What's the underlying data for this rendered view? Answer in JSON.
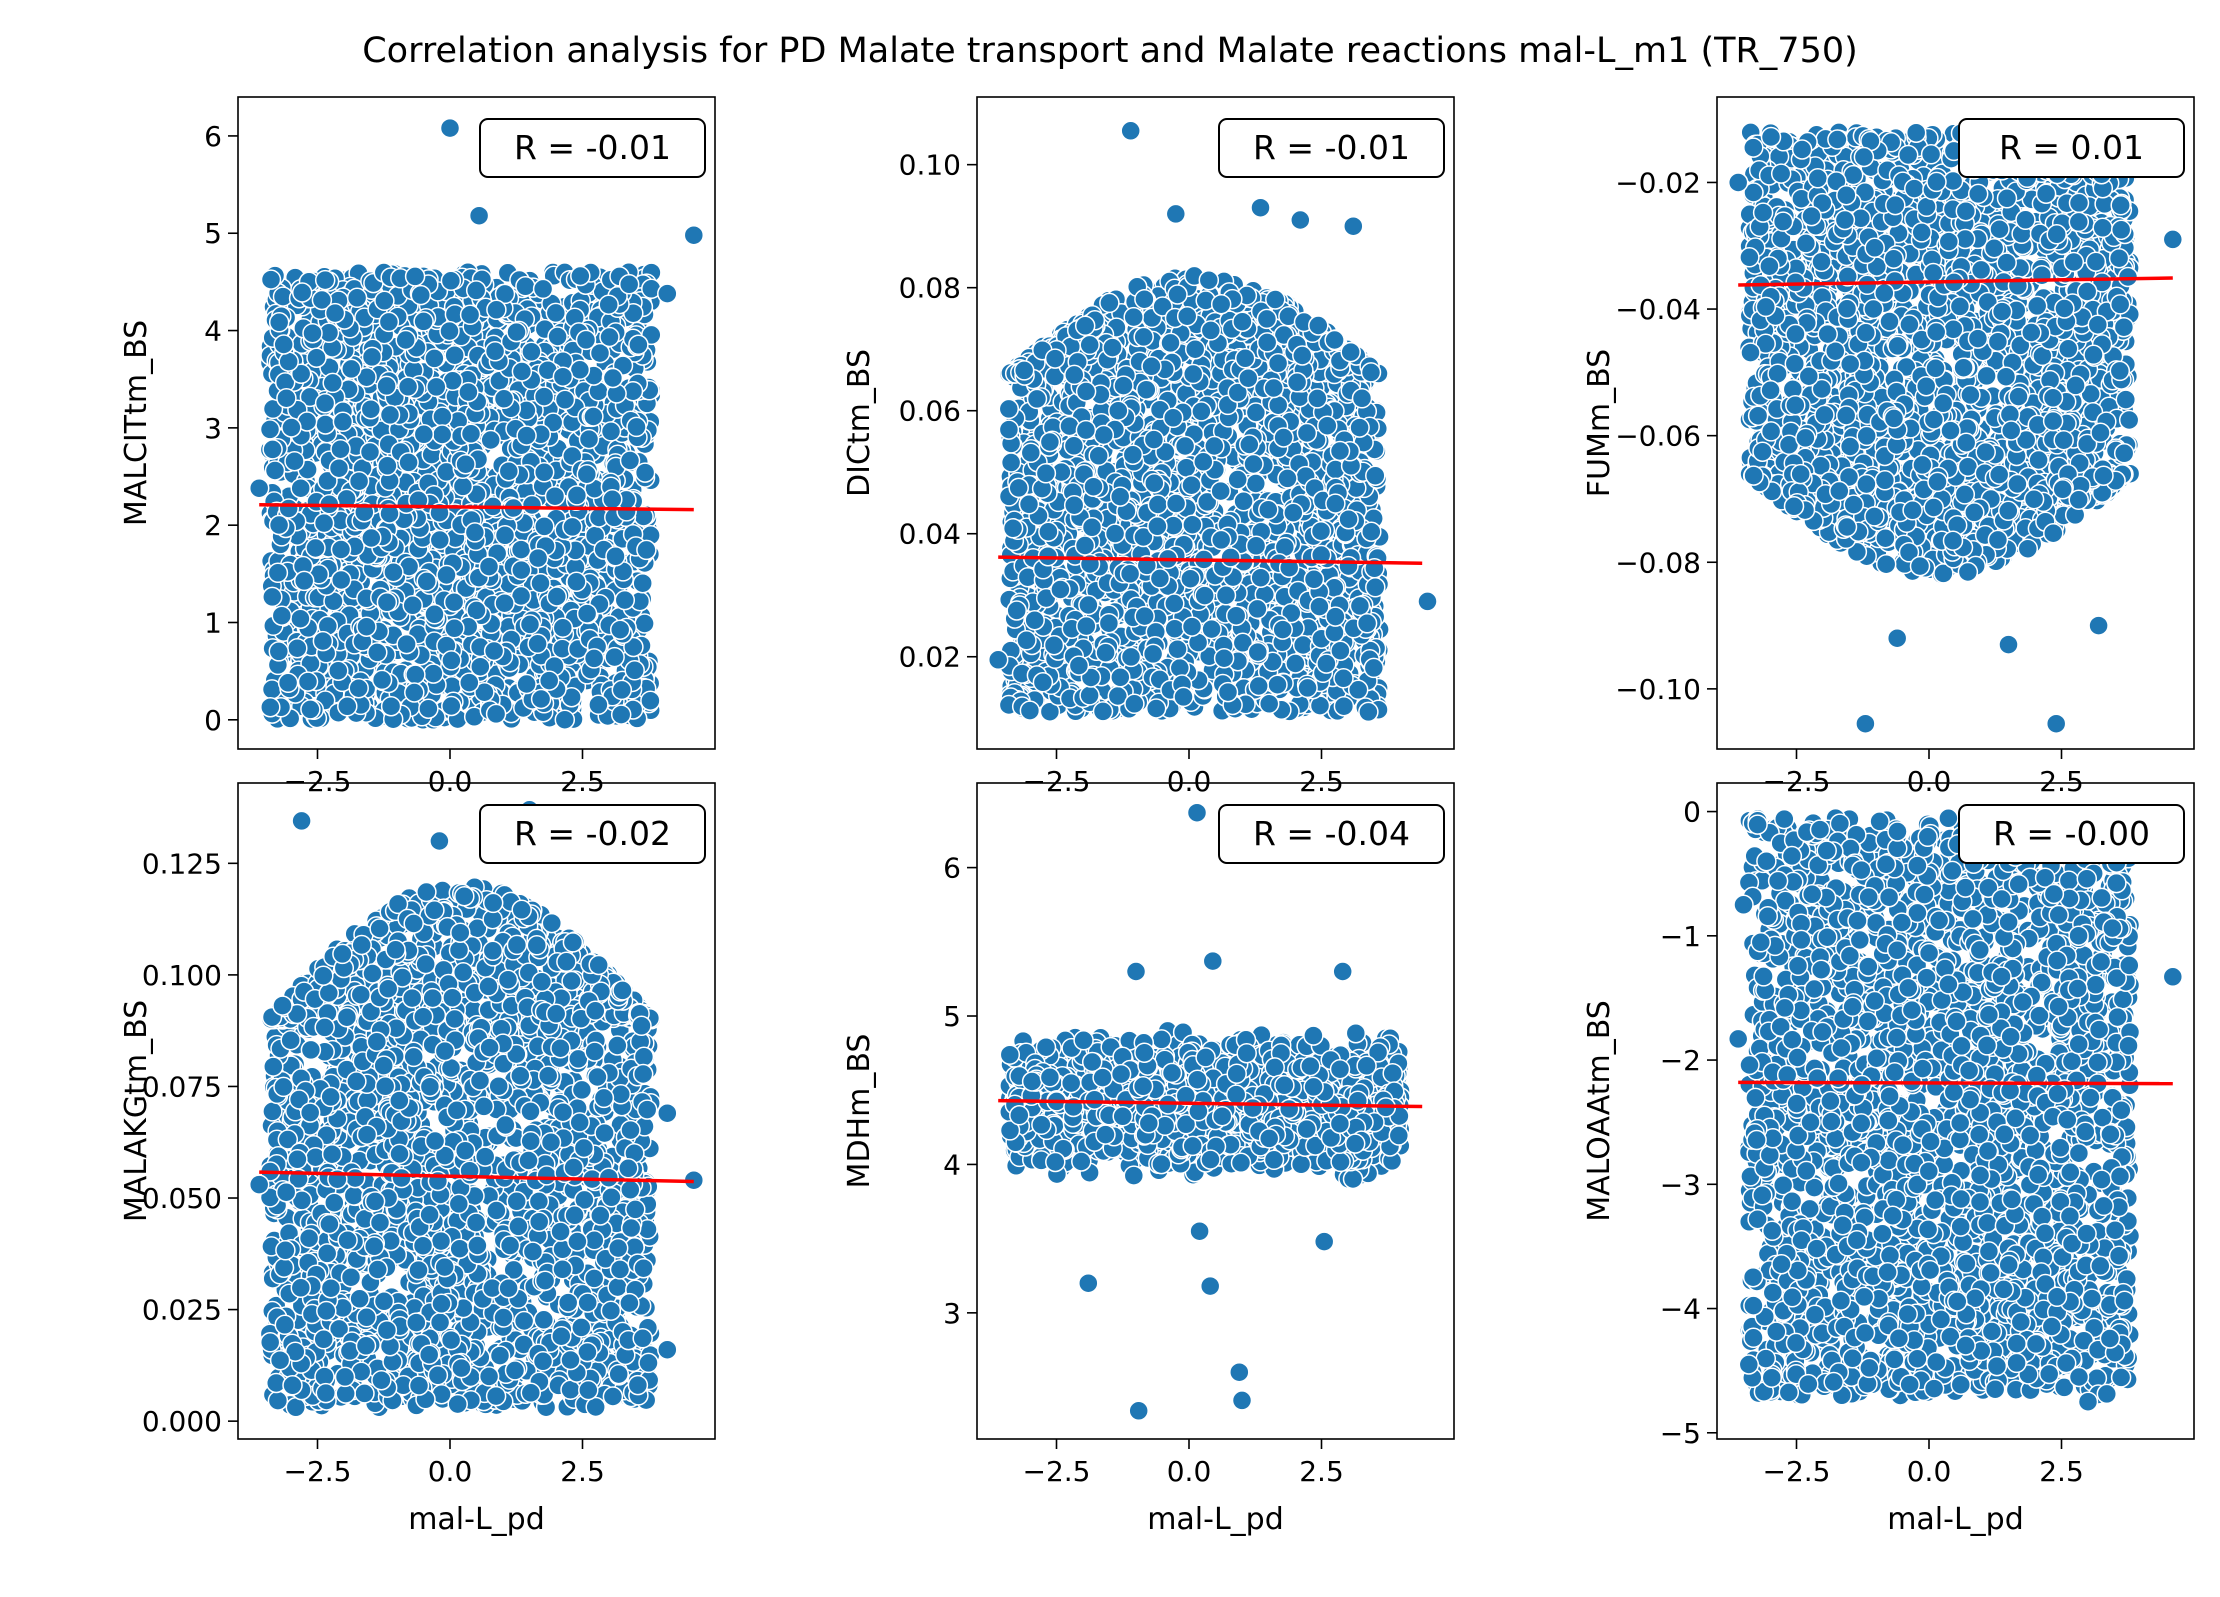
{
  "title": "Correlation analysis for PD Malate transport and  Malate reactions mal-L_m1 (TR_750)",
  "colors": {
    "point": "#1f77b4",
    "point_edge": "#ffffff",
    "fit_line": "#ff0000",
    "box_edge": "#000000"
  },
  "chart_data": [
    {
      "type": "scatter",
      "xlabel": "",
      "ylabel": "MALCITtm_BS",
      "xlim": [
        -4.0,
        5.0
      ],
      "ylim": [
        -0.3,
        6.4
      ],
      "xticks": [
        -2.5,
        0.0,
        2.5
      ],
      "xtick_labels": [
        "−2.5",
        "0.0",
        "2.5"
      ],
      "yticks": [
        0,
        1,
        2,
        3,
        4,
        5,
        6
      ],
      "ytick_labels": [
        "0",
        "1",
        "2",
        "3",
        "4",
        "5",
        "6"
      ],
      "cloud": {
        "x_range": [
          -3.4,
          3.8
        ],
        "y_range": [
          0.0,
          4.6
        ],
        "shape": "uniform"
      },
      "outliers": [
        [
          0.0,
          6.08
        ],
        [
          0.55,
          5.18
        ],
        [
          4.6,
          4.98
        ],
        [
          4.1,
          4.38
        ],
        [
          -3.6,
          2.38
        ]
      ],
      "fit": {
        "x": [
          -3.6,
          4.6
        ],
        "y": [
          2.21,
          2.16
        ]
      },
      "annotation": "R = -0.01"
    },
    {
      "type": "scatter",
      "xlabel": "",
      "ylabel": "DICtm_BS",
      "xlim": [
        -4.0,
        5.0
      ],
      "ylim": [
        0.005,
        0.111
      ],
      "xticks": [
        -2.5,
        0.0,
        2.5
      ],
      "xtick_labels": [
        "−2.5",
        "0.0",
        "2.5"
      ],
      "yticks": [
        0.02,
        0.04,
        0.06,
        0.08,
        0.1
      ],
      "ytick_labels": [
        "0.02",
        "0.04",
        "0.06",
        "0.08",
        "0.10"
      ],
      "cloud": {
        "x_range": [
          -3.4,
          3.6
        ],
        "y_range": [
          0.011,
          0.066
        ],
        "top_spread": 0.016,
        "shape": "mound"
      },
      "outliers": [
        [
          -1.1,
          0.1055
        ],
        [
          -0.25,
          0.092
        ],
        [
          1.35,
          0.093
        ],
        [
          2.1,
          0.091
        ],
        [
          3.1,
          0.09
        ],
        [
          4.5,
          0.029
        ],
        [
          -3.6,
          0.0195
        ]
      ],
      "fit": {
        "x": [
          -3.6,
          4.4
        ],
        "y": [
          0.0362,
          0.0352
        ]
      },
      "annotation": "R = -0.01"
    },
    {
      "type": "scatter",
      "xlabel": "",
      "ylabel": "FUMm_BS",
      "xlim": [
        -4.0,
        5.0
      ],
      "ylim": [
        -0.1095,
        -0.0065
      ],
      "xticks": [
        -2.5,
        0.0,
        2.5
      ],
      "xtick_labels": [
        "−2.5",
        "0.0",
        "2.5"
      ],
      "yticks": [
        -0.1,
        -0.08,
        -0.06,
        -0.04,
        -0.02
      ],
      "ytick_labels": [
        "−0.10",
        "−0.08",
        "−0.06",
        "−0.04",
        "−0.02"
      ],
      "cloud": {
        "x_range": [
          -3.4,
          3.8
        ],
        "y_range": [
          -0.066,
          -0.012
        ],
        "bottom_spread": 0.016,
        "shape": "bowl"
      },
      "outliers": [
        [
          -1.2,
          -0.1055
        ],
        [
          2.4,
          -0.1055
        ],
        [
          -0.6,
          -0.092
        ],
        [
          1.5,
          -0.093
        ],
        [
          3.2,
          -0.09
        ],
        [
          4.6,
          -0.029
        ],
        [
          -3.6,
          -0.02
        ]
      ],
      "fit": {
        "x": [
          -3.6,
          4.6
        ],
        "y": [
          -0.0362,
          -0.0351
        ]
      },
      "annotation": "R = 0.01"
    },
    {
      "type": "scatter",
      "xlabel": "mal-L_pd",
      "ylabel": "MALAKGtm_BS",
      "xlim": [
        -4.0,
        5.0
      ],
      "ylim": [
        -0.004,
        0.143
      ],
      "xticks": [
        -2.5,
        0.0,
        2.5
      ],
      "xtick_labels": [
        "−2.5",
        "0.0",
        "2.5"
      ],
      "yticks": [
        0.0,
        0.025,
        0.05,
        0.075,
        0.1,
        0.125
      ],
      "ytick_labels": [
        "0.000",
        "0.025",
        "0.050",
        "0.075",
        "0.100",
        "0.125"
      ],
      "cloud": {
        "x_range": [
          -3.4,
          3.8
        ],
        "y_range": [
          0.003,
          0.09
        ],
        "top_spread": 0.03,
        "shape": "mound"
      },
      "outliers": [
        [
          -2.8,
          0.1345
        ],
        [
          -0.2,
          0.13
        ],
        [
          1.5,
          0.137
        ],
        [
          4.6,
          0.054
        ],
        [
          -3.6,
          0.053
        ],
        [
          4.1,
          0.069
        ],
        [
          4.1,
          0.016
        ]
      ],
      "fit": {
        "x": [
          -3.6,
          4.6
        ],
        "y": [
          0.0558,
          0.0537
        ]
      },
      "annotation": "R = -0.02"
    },
    {
      "type": "scatter",
      "xlabel": "mal-L_pd",
      "ylabel": "MDHm_BS",
      "xlim": [
        -4.0,
        5.0
      ],
      "ylim": [
        2.15,
        6.57
      ],
      "xticks": [
        -2.5,
        0.0,
        2.5
      ],
      "xtick_labels": [
        "−2.5",
        "0.0",
        "2.5"
      ],
      "yticks": [
        3,
        4,
        5,
        6
      ],
      "ytick_labels": [
        "3",
        "4",
        "5",
        "6"
      ],
      "cloud": {
        "x_range": [
          -3.4,
          4.0
        ],
        "y_range": [
          3.85,
          4.95
        ],
        "shape": "band"
      },
      "outliers": [
        [
          0.15,
          6.37
        ],
        [
          4.5,
          6.37
        ],
        [
          -1.0,
          5.3
        ],
        [
          0.45,
          5.37
        ],
        [
          2.9,
          5.3
        ],
        [
          -1.9,
          3.2
        ],
        [
          0.4,
          3.18
        ],
        [
          0.95,
          2.6
        ],
        [
          1.0,
          2.41
        ],
        [
          -0.95,
          2.34
        ],
        [
          2.55,
          3.48
        ],
        [
          0.2,
          3.55
        ]
      ],
      "fit": {
        "x": [
          -3.6,
          4.4
        ],
        "y": [
          4.43,
          4.39
        ]
      },
      "annotation": "R = -0.04"
    },
    {
      "type": "scatter",
      "xlabel": "mal-L_pd",
      "ylabel": "MALOAAtm_BS",
      "xlim": [
        -4.0,
        5.0
      ],
      "ylim": [
        -5.05,
        0.23
      ],
      "xticks": [
        -2.5,
        0.0,
        2.5
      ],
      "xtick_labels": [
        "−2.5",
        "0.0",
        "2.5"
      ],
      "yticks": [
        0,
        -1,
        -2,
        -3,
        -4,
        -5
      ],
      "ytick_labels": [
        "0",
        "−1",
        "−2",
        "−3",
        "−4",
        "−5"
      ],
      "cloud": {
        "x_range": [
          -3.4,
          3.8
        ],
        "y_range": [
          -4.7,
          -0.05
        ],
        "shape": "uniform"
      },
      "outliers": [
        [
          4.6,
          -1.33
        ],
        [
          -3.6,
          -1.83
        ],
        [
          -3.5,
          -0.75
        ],
        [
          -3.4,
          -4.45
        ],
        [
          3.0,
          -4.75
        ]
      ],
      "fit": {
        "x": [
          -3.6,
          4.6
        ],
        "y": [
          -2.18,
          -2.19
        ]
      },
      "annotation": "R = -0.00"
    }
  ]
}
